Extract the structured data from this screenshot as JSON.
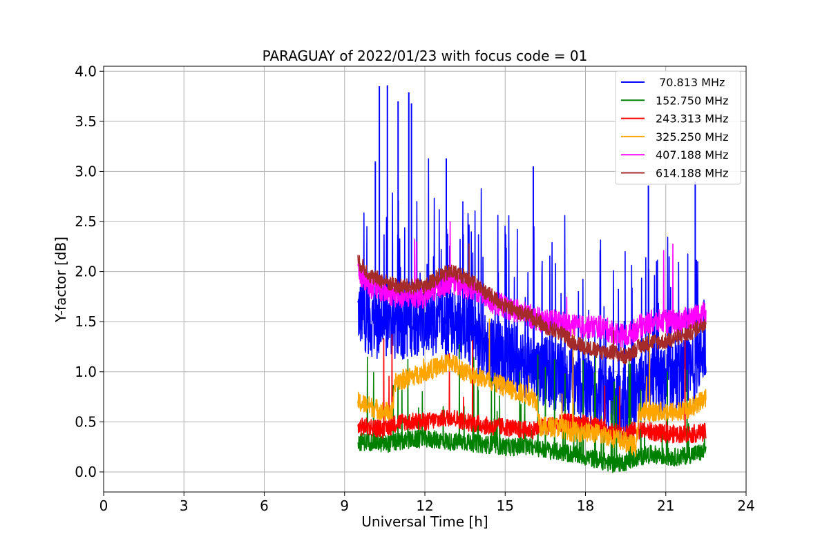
{
  "chart_data": {
    "type": "line",
    "title": "PARAGUAY of 2022/01/23 with focus code = 01",
    "xlabel": "Universal Time [h]",
    "ylabel": "Y-factor [dB]",
    "xlim": [
      0,
      24
    ],
    "ylim": [
      -0.2,
      4.05
    ],
    "xticks": [
      0,
      3,
      6,
      9,
      12,
      15,
      18,
      21,
      24
    ],
    "xtick_labels": [
      "0",
      "3",
      "6",
      "9",
      "12",
      "15",
      "18",
      "21",
      "24"
    ],
    "yticks": [
      0.0,
      0.5,
      1.0,
      1.5,
      2.0,
      2.5,
      3.0,
      3.5,
      4.0
    ],
    "ytick_labels": [
      "0.0",
      "0.5",
      "1.0",
      "1.5",
      "2.0",
      "2.5",
      "3.0",
      "3.5",
      "4.0"
    ],
    "grid": true,
    "legend_position": "top-right",
    "series": [
      {
        "name": " 70.813 MHz",
        "color": "#0000ff",
        "x": [
          9.5,
          10.0,
          10.5,
          11.0,
          11.5,
          12.0,
          12.5,
          13.0,
          13.5,
          14.0,
          14.5,
          15.0,
          15.5,
          16.0,
          16.5,
          17.0,
          17.5,
          18.0,
          18.5,
          19.0,
          19.5,
          20.0,
          20.5,
          21.0,
          21.5,
          22.0,
          22.5
        ],
        "values": [
          1.6,
          1.5,
          1.45,
          1.45,
          1.5,
          1.5,
          1.45,
          1.5,
          1.45,
          1.3,
          1.2,
          1.15,
          1.1,
          1.05,
          1.0,
          0.95,
          0.9,
          0.85,
          0.8,
          0.7,
          0.6,
          0.8,
          0.85,
          0.9,
          0.95,
          1.0,
          1.3
        ],
        "spikes": [
          [
            10.15,
            3.1
          ],
          [
            10.3,
            3.85
          ],
          [
            10.6,
            3.86
          ],
          [
            11.0,
            3.7
          ],
          [
            11.4,
            3.79
          ],
          [
            11.5,
            3.68
          ],
          [
            12.8,
            3.13
          ],
          [
            16.05,
            3.05
          ],
          [
            20.35,
            2.86
          ],
          [
            22.1,
            2.9
          ]
        ]
      },
      {
        "name": "152.750 MHz",
        "color": "#008000",
        "x": [
          9.5,
          10.0,
          10.5,
          11.0,
          11.5,
          12.0,
          12.5,
          13.0,
          13.5,
          14.0,
          14.5,
          15.0,
          15.5,
          16.0,
          16.5,
          17.0,
          17.5,
          18.0,
          18.5,
          19.0,
          19.5,
          20.0,
          20.5,
          21.0,
          21.5,
          22.0,
          22.5
        ],
        "values": [
          0.3,
          0.3,
          0.28,
          0.3,
          0.32,
          0.33,
          0.32,
          0.3,
          0.3,
          0.28,
          0.27,
          0.25,
          0.25,
          0.25,
          0.22,
          0.2,
          0.18,
          0.15,
          0.12,
          0.08,
          0.1,
          0.15,
          0.18,
          0.15,
          0.15,
          0.18,
          0.2
        ]
      },
      {
        "name": "243.313 MHz",
        "color": "#ff0000",
        "x": [
          9.5,
          10.0,
          10.5,
          11.0,
          11.5,
          12.0,
          12.5,
          13.0,
          13.5,
          14.0,
          14.5,
          15.0,
          15.5,
          16.0,
          16.5,
          17.0,
          17.5,
          18.0,
          18.5,
          19.0,
          19.5,
          20.0,
          20.5,
          21.0,
          21.5,
          22.0,
          22.5
        ],
        "values": [
          0.45,
          0.45,
          0.42,
          0.5,
          0.5,
          0.5,
          0.52,
          0.55,
          0.5,
          0.48,
          0.45,
          0.45,
          0.42,
          0.42,
          0.45,
          0.48,
          0.5,
          0.48,
          0.45,
          0.4,
          0.4,
          0.42,
          0.4,
          0.38,
          0.38,
          0.38,
          0.4
        ]
      },
      {
        "name": "325.250 MHz",
        "color": "#ffa500",
        "x": [
          9.5,
          10.0,
          10.5,
          10.8,
          10.9,
          11.5,
          12.0,
          12.5,
          13.0,
          13.5,
          14.0,
          14.5,
          15.0,
          15.5,
          16.0,
          16.2,
          16.3,
          17.0,
          17.5,
          18.0,
          18.5,
          19.0,
          19.5,
          19.9,
          20.0,
          20.5,
          21.0,
          21.5,
          22.0,
          22.5
        ],
        "values": [
          0.7,
          0.65,
          0.6,
          0.6,
          0.9,
          0.95,
          1.0,
          1.05,
          1.1,
          1.0,
          0.95,
          0.9,
          0.85,
          0.8,
          0.75,
          0.7,
          0.45,
          0.45,
          0.4,
          0.4,
          0.38,
          0.35,
          0.3,
          0.25,
          0.6,
          0.6,
          0.6,
          0.6,
          0.65,
          0.75
        ]
      },
      {
        "name": "407.188 MHz",
        "color": "#ff00ff",
        "x": [
          9.5,
          10.0,
          10.5,
          11.0,
          11.5,
          12.0,
          12.5,
          13.0,
          13.5,
          14.0,
          14.5,
          15.0,
          15.5,
          16.0,
          16.5,
          17.0,
          17.5,
          18.0,
          18.5,
          19.0,
          19.5,
          20.0,
          20.5,
          21.0,
          21.5,
          22.0,
          22.5
        ],
        "values": [
          2.0,
          1.85,
          1.8,
          1.75,
          1.75,
          1.75,
          1.85,
          1.9,
          1.85,
          1.8,
          1.7,
          1.65,
          1.6,
          1.55,
          1.5,
          1.5,
          1.45,
          1.45,
          1.45,
          1.4,
          1.35,
          1.45,
          1.5,
          1.5,
          1.5,
          1.55,
          1.6
        ]
      },
      {
        "name": "614.188 MHz",
        "color": "#a52a2a",
        "x": [
          9.5,
          10.0,
          10.5,
          11.0,
          11.5,
          12.0,
          12.5,
          13.0,
          13.5,
          14.0,
          14.5,
          15.0,
          15.5,
          16.0,
          16.5,
          17.0,
          17.5,
          18.0,
          18.5,
          19.0,
          19.5,
          20.0,
          20.5,
          21.0,
          21.5,
          22.0,
          22.5
        ],
        "values": [
          2.1,
          1.95,
          1.9,
          1.85,
          1.85,
          1.85,
          1.95,
          2.0,
          1.95,
          1.85,
          1.75,
          1.65,
          1.6,
          1.55,
          1.45,
          1.4,
          1.3,
          1.25,
          1.2,
          1.2,
          1.15,
          1.25,
          1.3,
          1.3,
          1.35,
          1.4,
          1.5
        ]
      }
    ]
  }
}
